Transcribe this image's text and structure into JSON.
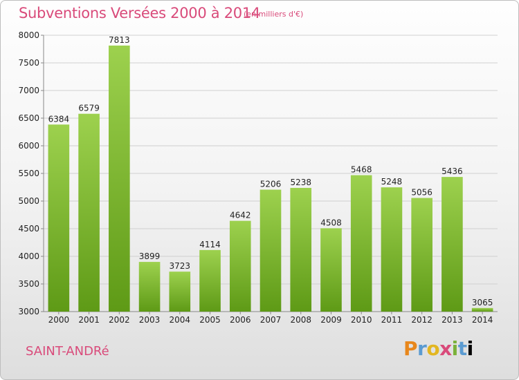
{
  "header": {
    "title": "Subventions Versées 2000 à 2014",
    "subtitle": "(en milliers d'€)"
  },
  "footer": {
    "place_name": "SAINT-ANDRé",
    "logo_text": "Proxiti"
  },
  "colors": {
    "title": "#d94a7a",
    "bar_light": "#9dd14e",
    "bar_dark": "#5e9a16"
  },
  "chart_data": {
    "type": "bar",
    "title": "Subventions Versées 2000 à 2014",
    "subtitle": "(en milliers d'€)",
    "categories": [
      "2000",
      "2001",
      "2002",
      "2003",
      "2004",
      "2005",
      "2006",
      "2007",
      "2008",
      "2009",
      "2010",
      "2011",
      "2012",
      "2013",
      "2014"
    ],
    "values": [
      6384,
      6579,
      7813,
      3899,
      3723,
      4114,
      4642,
      5206,
      5238,
      4508,
      5468,
      5248,
      5056,
      5436,
      3065
    ],
    "ylim": [
      3000,
      8000
    ],
    "yticks": [
      3000,
      3500,
      4000,
      4500,
      5000,
      5500,
      6000,
      6500,
      7000,
      7500,
      8000
    ],
    "grid": true,
    "legend": "none"
  }
}
